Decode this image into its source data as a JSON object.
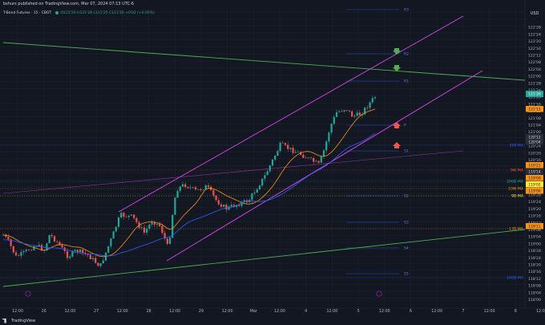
{
  "header": {
    "publish_note": "bshurs published on TradingView.com, Mar 07, 2024 07:13 UTC-6",
    "symbol": "T-Bond Futures · 15 · CBOT",
    "ohlc": "O121'26 H121'28 L121'25 C121'26 +0'02 (+0.05%)"
  },
  "price_axis": {
    "currency": "USD",
    "ticks": [
      "122'28",
      "122'24",
      "122'20",
      "122'16",
      "122'12",
      "122'08",
      "122'04",
      "122'00",
      "121'28",
      "121'24",
      "121'20",
      "121'16",
      "121'12",
      "121'08",
      "121'04",
      "121'00",
      "120'28",
      "120'24",
      "120'20",
      "120'16",
      "120'12",
      "120'08",
      "120'04",
      "120'00",
      "119'28",
      "119'24",
      "119'20",
      "119'16",
      "119'12",
      "119'08",
      "119'04",
      "119'00",
      "118'28",
      "118'24",
      "118'20",
      "118'16",
      "118'12",
      "118'08",
      "118'04",
      "118'00",
      "117'28",
      "117'24"
    ],
    "current_price_tag": "121'26",
    "tags": [
      {
        "label": "121'13",
        "color": "#f7931a"
      },
      {
        "label": "120'12",
        "color": "#2a2e39"
      },
      {
        "label": "120'04",
        "color": "#2a2e39"
      },
      {
        "label": "119'21",
        "color": "#f7931a"
      },
      {
        "label": "119'14",
        "color": "#2a2e39"
      },
      {
        "label": "119'09",
        "color": "#f7931a"
      },
      {
        "label": "119'02",
        "color": "#ffeb3b"
      },
      {
        "label": "119'00",
        "color": "#f7931a"
      },
      {
        "label": "118'11",
        "color": "#f7931a"
      }
    ]
  },
  "ma_labels": [
    {
      "label": "500 MA",
      "color": "#2962ff"
    },
    {
      "label": "9W MA",
      "color": "#ff5722"
    },
    {
      "label": "200D MA",
      "color": "#26a69a"
    },
    {
      "label": "10W MA",
      "color": "#f7931a"
    },
    {
      "label": "9D MA",
      "color": "#ffeb3b"
    },
    {
      "label": "13D MA",
      "color": "#f7931a"
    },
    {
      "label": "100D MA",
      "color": "#2962ff"
    }
  ],
  "level_labels": [
    "R3",
    "R2",
    "R1",
    "P",
    "S1",
    "S2",
    "S3",
    "S4",
    "S5"
  ],
  "time_axis": [
    "12:00",
    "26",
    "12:00",
    "27",
    "12:00",
    "28",
    "12:00",
    "29",
    "12:00",
    "Mar",
    "12:00",
    "4",
    "12:00",
    "5",
    "12:00",
    "6",
    "12:00",
    "7",
    "12:00",
    "8",
    "12:00",
    "11",
    "12:00",
    "12"
  ],
  "footer": {
    "brand": "TradingView"
  },
  "colors": {
    "up": "#26a69a",
    "down": "#ef5350",
    "channel": "#d946ef",
    "trend_green": "#4caf50",
    "ma_orange": "#f7931a",
    "ma_blue": "#2962ff",
    "arrow_green": "#4caf50",
    "arrow_red": "#ef5350"
  }
}
